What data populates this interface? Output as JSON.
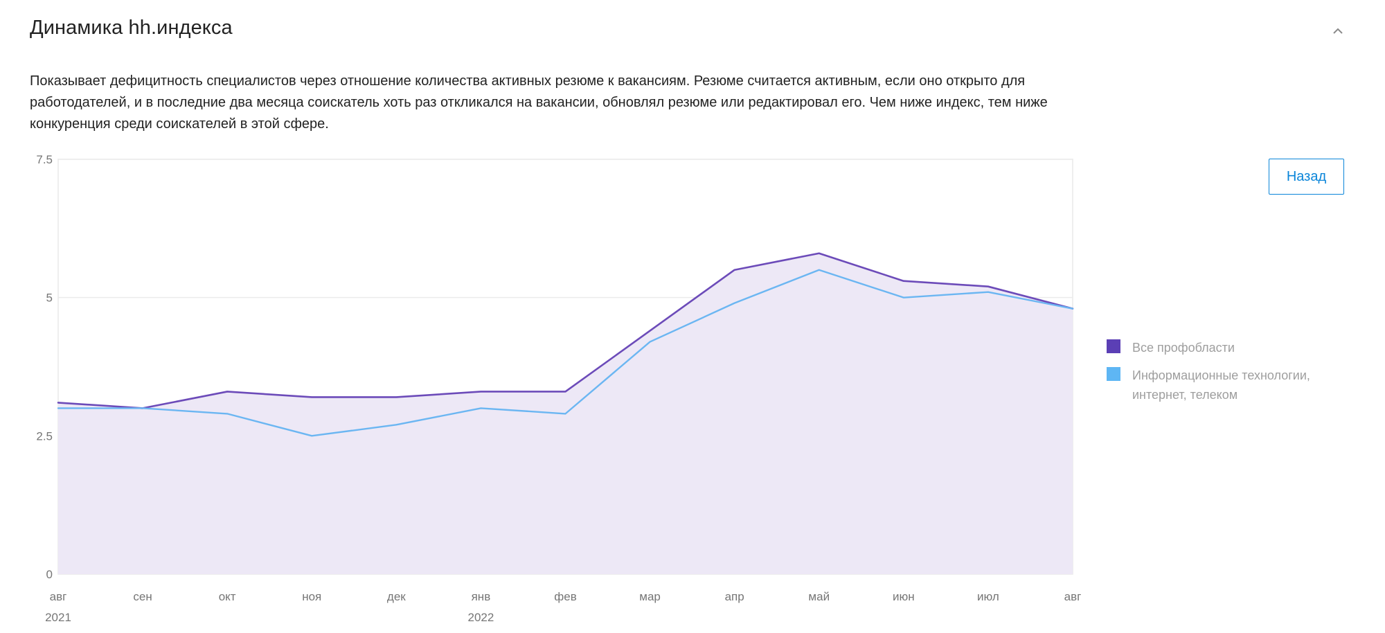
{
  "header": {
    "title": "Динамика hh.индекса",
    "collapse_icon": "chevron-up-icon"
  },
  "description": "Показывает дефицитность специалистов через отношение количества активных резюме к вакансиям. Резюме считается активным, если оно открыто для работодателей, и в последние два месяца соискатель хоть раз откликался на вакансии, обновлял резюме или редактировал его. Чем ниже индекс, тем ниже конкуренция среди соискателей в этой сфере.",
  "back_button": {
    "label": "Назад"
  },
  "colors": {
    "all_professions": "#6c4bb9",
    "it": "#6bb6f2",
    "fill": "#ede8f6",
    "accent": "#0a85d9"
  },
  "legend": {
    "items": [
      {
        "label": "Все профобласти",
        "color": "#5b3fb5"
      },
      {
        "label": "Информационные технологии, интернет, телеком",
        "color": "#5eb6f4"
      }
    ]
  },
  "chart_data": {
    "type": "line",
    "categories": [
      "авг",
      "сен",
      "окт",
      "ноя",
      "дек",
      "янв",
      "фев",
      "мар",
      "апр",
      "май",
      "июн",
      "июл",
      "авг"
    ],
    "year_labels": [
      {
        "category_index": 0,
        "label": "2021"
      },
      {
        "category_index": 5,
        "label": "2022"
      }
    ],
    "y_ticks": [
      "0",
      "2.5",
      "5",
      "7.5"
    ],
    "ylim": [
      0,
      7.5
    ],
    "grid": true,
    "legend_position": "right",
    "series": [
      {
        "name": "Все профобласти",
        "values": [
          3.1,
          3.0,
          3.3,
          3.2,
          3.2,
          3.3,
          3.3,
          4.4,
          5.5,
          5.8,
          5.3,
          5.2,
          4.8
        ],
        "area": true
      },
      {
        "name": "Информационные технологии, интернет, телеком",
        "values": [
          3.0,
          3.0,
          2.9,
          2.5,
          2.7,
          3.0,
          2.9,
          4.2,
          4.9,
          5.5,
          5.0,
          5.1,
          4.8
        ],
        "area": false
      }
    ]
  }
}
